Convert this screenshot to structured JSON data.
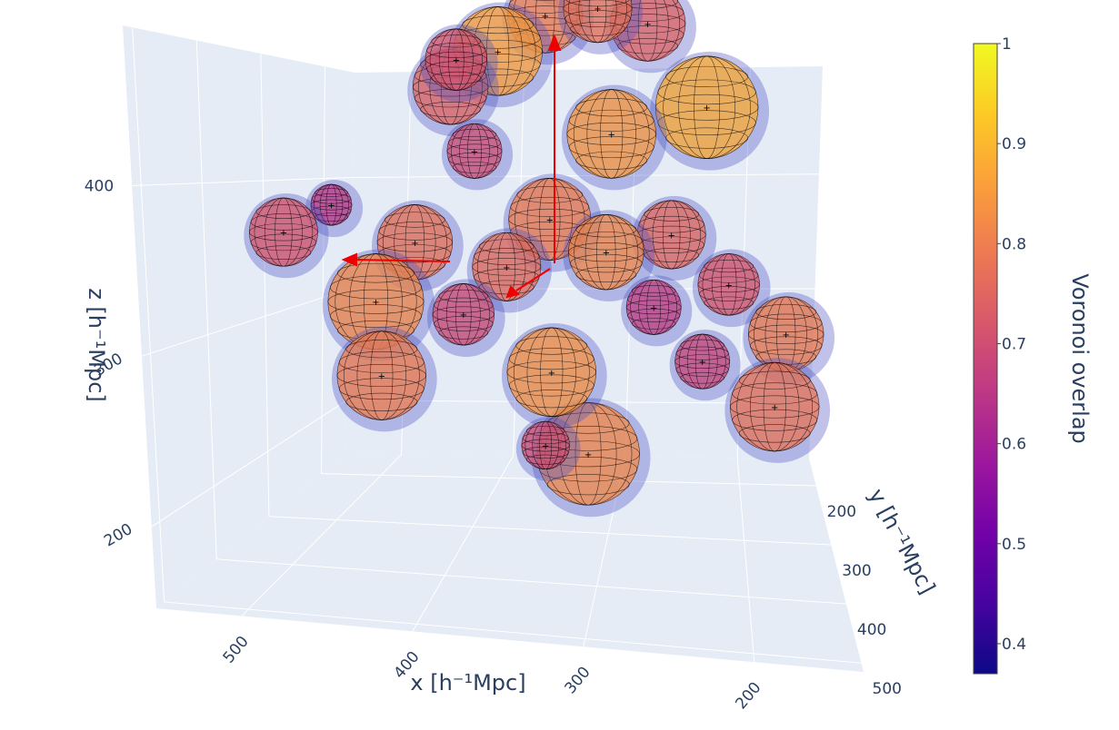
{
  "chart_data": {
    "type": "scatter3d",
    "x_title": "x [h⁻¹Mpc]",
    "y_title": "y [h⁻¹Mpc]",
    "z_title": "z [h⁻¹Mpc]",
    "xlim": [
      550,
      136
    ],
    "xticks": [
      500,
      400,
      300,
      200
    ],
    "ylim": [
      154,
      515
    ],
    "yticks": [
      200,
      300,
      400,
      500
    ],
    "zlim": [
      152,
      494
    ],
    "zticks": [
      200,
      300,
      400
    ],
    "x": [
      440,
      410,
      390,
      360,
      390,
      330,
      320,
      300,
      270,
      240,
      210,
      180,
      240,
      280,
      310,
      250,
      210,
      180,
      150,
      160,
      290,
      270,
      300,
      200,
      260,
      330,
      230,
      340
    ],
    "y": [
      330,
      320,
      350,
      300,
      360,
      260,
      280,
      250,
      240,
      250,
      240,
      260,
      290,
      300,
      330,
      320,
      310,
      330,
      350,
      360,
      360,
      350,
      400,
      350,
      230,
      300,
      380,
      360
    ],
    "z": [
      330,
      345,
      300,
      320,
      260,
      400,
      370,
      420,
      440,
      450,
      440,
      400,
      390,
      340,
      320,
      330,
      340,
      320,
      300,
      260,
      270,
      220,
      240,
      280,
      470,
      430,
      320,
      300
    ],
    "radius": [
      20,
      12,
      28,
      22,
      26,
      22,
      16,
      26,
      22,
      20,
      22,
      30,
      26,
      24,
      20,
      22,
      20,
      18,
      22,
      26,
      26,
      30,
      14,
      16,
      20,
      18,
      16,
      18
    ],
    "overlap": [
      0.72,
      0.65,
      0.82,
      0.78,
      0.8,
      0.75,
      0.7,
      0.86,
      0.8,
      0.78,
      0.74,
      0.88,
      0.85,
      0.8,
      0.77,
      0.82,
      0.76,
      0.72,
      0.8,
      0.78,
      0.84,
      0.82,
      0.7,
      0.68,
      0.8,
      0.72,
      0.66,
      0.7
    ],
    "colorbar_title": "Voronoi overlap",
    "clim": [
      0.37,
      1
    ],
    "cticks": [
      0.4,
      0.5,
      0.6,
      0.7,
      0.8,
      0.9,
      1
    ],
    "colorscale": [
      "#0d0887",
      "#46039f",
      "#7201a8",
      "#9c179e",
      "#bd3786",
      "#d8576b",
      "#ed7953",
      "#fb9f3a",
      "#fdca26",
      "#f0f921"
    ]
  }
}
